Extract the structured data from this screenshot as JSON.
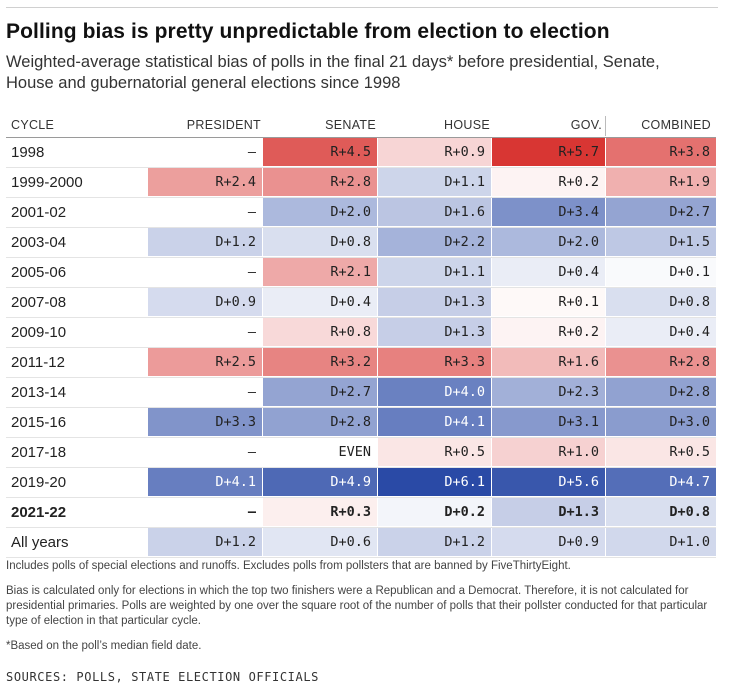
{
  "title": "Polling bias is pretty unpredictable from election to election",
  "subtitle": "Weighted-average statistical bias of polls in the final 21 days* before presidential, Senate, House and gubernatorial general elections since 1998",
  "colors": {
    "republican": "#d62a27",
    "democrat": "#2a4aa6",
    "neutral": "#ffffff"
  },
  "chart_data": {
    "type": "table",
    "columns": [
      "CYCLE",
      "PRESIDENT",
      "SENATE",
      "HOUSE",
      "GOV.",
      "COMBINED"
    ],
    "value_encoding": "positive = R (Republican) bias, negative = D (Democratic) bias, in percentage points; null = –",
    "rows": [
      {
        "cycle": "1998",
        "bold": false,
        "values": [
          null,
          4.5,
          0.9,
          5.7,
          3.8
        ],
        "labels": [
          "–",
          "R+4.5",
          "R+0.9",
          "R+5.7",
          "R+3.8"
        ]
      },
      {
        "cycle": "1999-2000",
        "bold": false,
        "values": [
          2.4,
          2.8,
          -1.1,
          0.2,
          1.9
        ],
        "labels": [
          "R+2.4",
          "R+2.8",
          "D+1.1",
          "R+0.2",
          "R+1.9"
        ]
      },
      {
        "cycle": "2001-02",
        "bold": false,
        "values": [
          null,
          -2.0,
          -1.6,
          -3.4,
          -2.7
        ],
        "labels": [
          "–",
          "D+2.0",
          "D+1.6",
          "D+3.4",
          "D+2.7"
        ]
      },
      {
        "cycle": "2003-04",
        "bold": false,
        "values": [
          -1.2,
          -0.8,
          -2.2,
          -2.0,
          -1.5
        ],
        "labels": [
          "D+1.2",
          "D+0.8",
          "D+2.2",
          "D+2.0",
          "D+1.5"
        ]
      },
      {
        "cycle": "2005-06",
        "bold": false,
        "values": [
          null,
          2.1,
          -1.1,
          -0.4,
          -0.1
        ],
        "labels": [
          "–",
          "R+2.1",
          "D+1.1",
          "D+0.4",
          "D+0.1"
        ]
      },
      {
        "cycle": "2007-08",
        "bold": false,
        "values": [
          -0.9,
          -0.4,
          -1.3,
          0.1,
          -0.8
        ],
        "labels": [
          "D+0.9",
          "D+0.4",
          "D+1.3",
          "R+0.1",
          "D+0.8"
        ]
      },
      {
        "cycle": "2009-10",
        "bold": false,
        "values": [
          null,
          0.8,
          -1.3,
          0.2,
          -0.4
        ],
        "labels": [
          "–",
          "R+0.8",
          "D+1.3",
          "R+0.2",
          "D+0.4"
        ]
      },
      {
        "cycle": "2011-12",
        "bold": false,
        "values": [
          2.5,
          3.2,
          3.3,
          1.6,
          2.8
        ],
        "labels": [
          "R+2.5",
          "R+3.2",
          "R+3.3",
          "R+1.6",
          "R+2.8"
        ]
      },
      {
        "cycle": "2013-14",
        "bold": false,
        "values": [
          null,
          -2.7,
          -4.0,
          -2.3,
          -2.8
        ],
        "labels": [
          "–",
          "D+2.7",
          "D+4.0",
          "D+2.3",
          "D+2.8"
        ]
      },
      {
        "cycle": "2015-16",
        "bold": false,
        "values": [
          -3.3,
          -2.8,
          -4.1,
          -3.1,
          -3.0
        ],
        "labels": [
          "D+3.3",
          "D+2.8",
          "D+4.1",
          "D+3.1",
          "D+3.0"
        ]
      },
      {
        "cycle": "2017-18",
        "bold": false,
        "values": [
          null,
          0.0,
          0.5,
          1.0,
          0.5
        ],
        "labels": [
          "–",
          "EVEN",
          "R+0.5",
          "R+1.0",
          "R+0.5"
        ]
      },
      {
        "cycle": "2019-20",
        "bold": false,
        "values": [
          -4.1,
          -4.9,
          -6.1,
          -5.6,
          -4.7
        ],
        "labels": [
          "D+4.1",
          "D+4.9",
          "D+6.1",
          "D+5.6",
          "D+4.7"
        ]
      },
      {
        "cycle": "2021-22",
        "bold": true,
        "values": [
          null,
          0.3,
          -0.2,
          -1.3,
          -0.8
        ],
        "labels": [
          "–",
          "R+0.3",
          "D+0.2",
          "D+1.3",
          "D+0.8"
        ]
      },
      {
        "cycle": "All years",
        "bold": false,
        "values": [
          -1.2,
          -0.6,
          -1.2,
          -0.9,
          -1.0
        ],
        "labels": [
          "D+1.2",
          "D+0.6",
          "D+1.2",
          "D+0.9",
          "D+1.0"
        ]
      }
    ]
  },
  "notes": [
    "Includes polls of special elections and runoffs. Excludes polls from pollsters that are banned by FiveThirtyEight.",
    "Bias is calculated only for elections in which the top two finishers were a Republican and a Democrat. Therefore, it is not calculated for presidential primaries. Polls are weighted by one over the square root of the number of polls that their pollster conducted for that particular type of election in that particular cycle.",
    "*Based on the poll’s median field date."
  ],
  "sources": "SOURCES: POLLS, STATE ELECTION OFFICIALS"
}
